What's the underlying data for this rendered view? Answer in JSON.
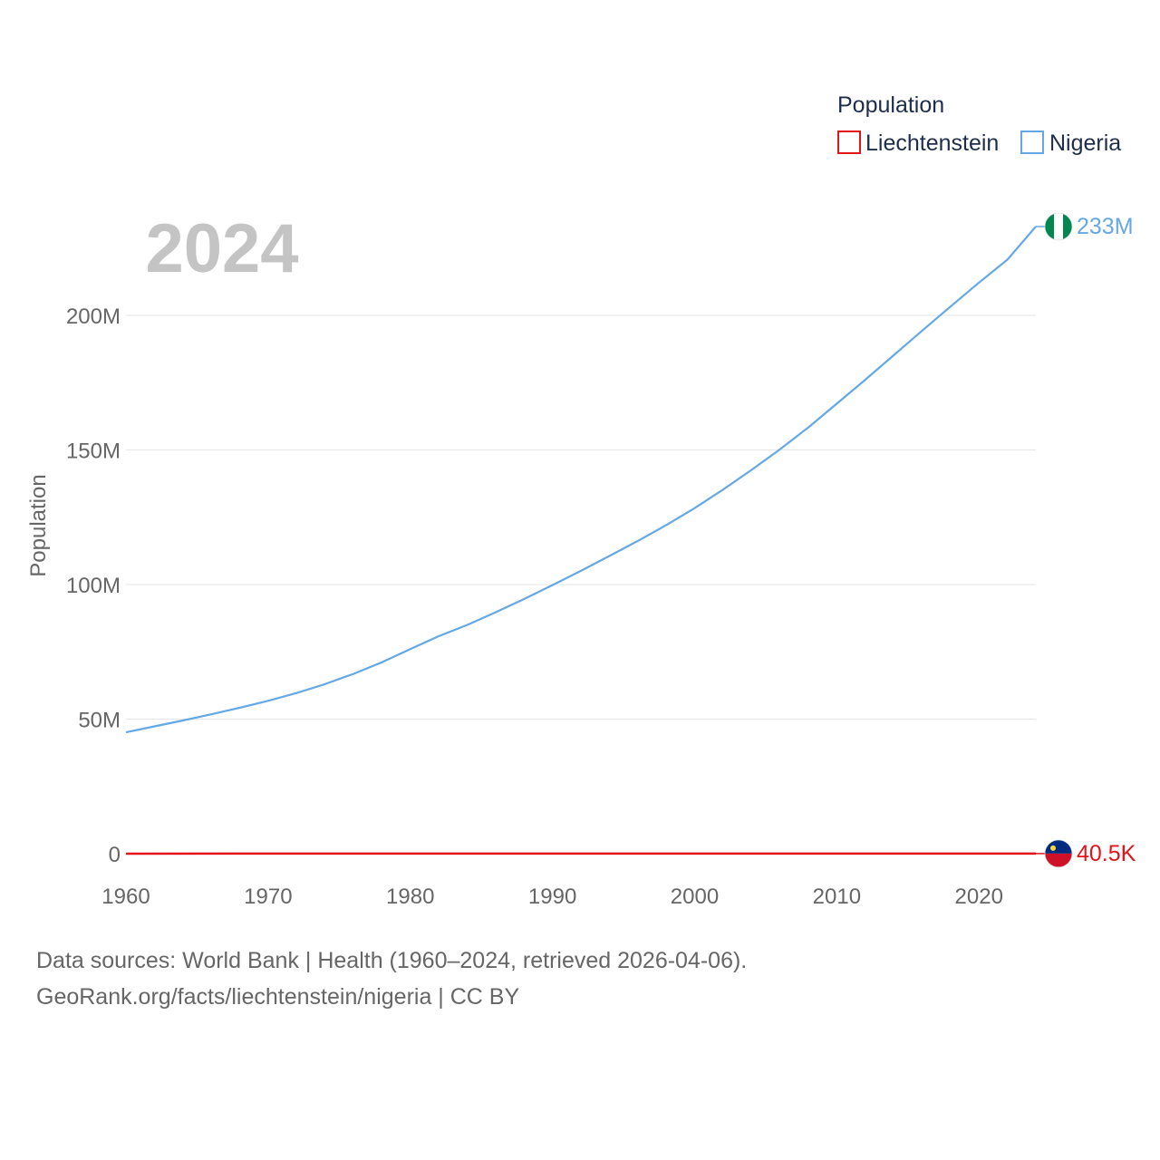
{
  "chart_data": {
    "type": "line",
    "year_label": "2024",
    "ylabel": "Population",
    "xlim": [
      1960,
      2024
    ],
    "ylim": [
      0,
      233000000
    ],
    "x_ticks": [
      1960,
      1970,
      1980,
      1990,
      2000,
      2010,
      2020
    ],
    "x_tick_labels": [
      "1960",
      "1970",
      "1980",
      "1990",
      "2000",
      "2010",
      "2020"
    ],
    "y_ticks": [
      0,
      50000000,
      100000000,
      150000000,
      200000000
    ],
    "y_tick_labels": [
      "0",
      "50M",
      "100M",
      "150M",
      "200M"
    ],
    "grid": true,
    "legend": {
      "title": "Population",
      "position": "top-right",
      "entries": [
        "Liechtenstein",
        "Nigeria"
      ]
    },
    "series": [
      {
        "name": "Liechtenstein",
        "color": "#e4141b",
        "end_label": "40.5K",
        "flag": "liechtenstein-flag",
        "x": [
          1960,
          1970,
          1980,
          1990,
          2000,
          2010,
          2020,
          2024
        ],
        "values": [
          16500,
          21000,
          25000,
          29000,
          33000,
          36000,
          38900,
          40500
        ]
      },
      {
        "name": "Nigeria",
        "color": "#64a8e6",
        "end_label": "233M",
        "flag": "nigeria-flag",
        "x": [
          1960,
          1962,
          1964,
          1966,
          1968,
          1970,
          1972,
          1974,
          1976,
          1978,
          1980,
          1982,
          1984,
          1986,
          1988,
          1990,
          1992,
          1994,
          1996,
          1998,
          2000,
          2002,
          2004,
          2006,
          2008,
          2010,
          2012,
          2014,
          2016,
          2018,
          2020,
          2022,
          2024
        ],
        "values": [
          45100000,
          47300000,
          49500000,
          51800000,
          54200000,
          56800000,
          59700000,
          63000000,
          66800000,
          71100000,
          76000000,
          80800000,
          85000000,
          89700000,
          94600000,
          99800000,
          105100000,
          110600000,
          116200000,
          122100000,
          128400000,
          135300000,
          142600000,
          150200000,
          158400000,
          167200000,
          176100000,
          185200000,
          194300000,
          203300000,
          212200000,
          220700000,
          233000000
        ]
      }
    ]
  },
  "footer": {
    "line1": "Data sources: World Bank | Health (1960–2024, retrieved 2026-04-06).",
    "line2": "GeoRank.org/facts/liechtenstein/nigeria | CC BY"
  }
}
